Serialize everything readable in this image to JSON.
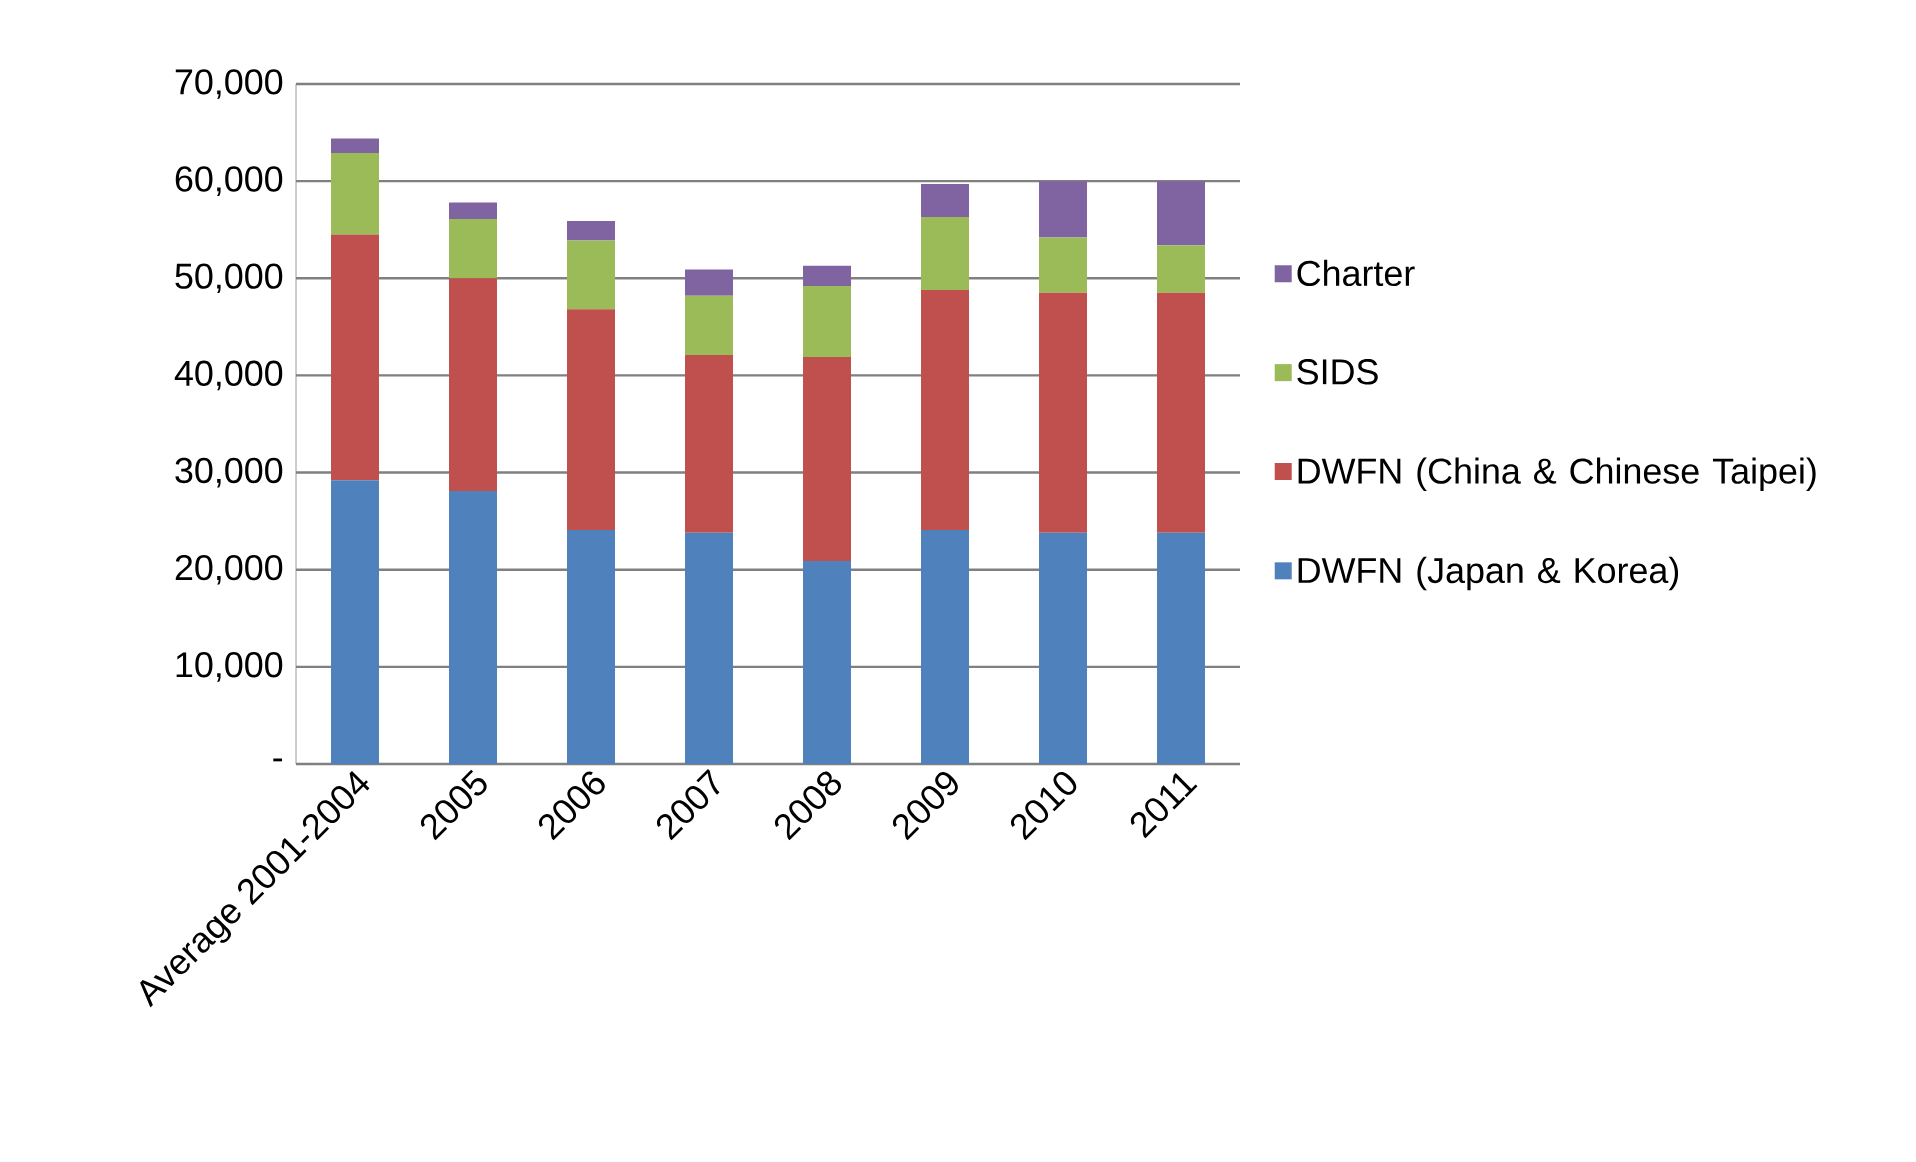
{
  "chart_data": {
    "type": "bar",
    "stacked": true,
    "categories": [
      "Average 2001-2004",
      "2005",
      "2006",
      "2007",
      "2008",
      "2009",
      "2010",
      "2011"
    ],
    "series": [
      {
        "name": "DWFN (Japan & Korea)",
        "color": "#4f81bd",
        "values": [
          29200,
          28100,
          24100,
          23800,
          20900,
          24100,
          23800,
          23800
        ]
      },
      {
        "name": "DWFN (China & Chinese Taipei)",
        "color": "#c0504d",
        "values": [
          25300,
          21900,
          22700,
          18300,
          21000,
          24700,
          24700,
          24700
        ]
      },
      {
        "name": "SIDS",
        "color": "#9bbb59",
        "values": [
          8400,
          6100,
          7100,
          6100,
          7300,
          7500,
          5700,
          4900
        ]
      },
      {
        "name": "Charter",
        "color": "#8064a2",
        "values": [
          1500,
          1700,
          2000,
          2700,
          2100,
          3400,
          5800,
          6600
        ]
      }
    ],
    "ylim": [
      0,
      70000
    ],
    "yticks": [
      {
        "value": 0,
        "label": "-"
      },
      {
        "value": 10000,
        "label": "10,000"
      },
      {
        "value": 20000,
        "label": "20,000"
      },
      {
        "value": 30000,
        "label": "30,000"
      },
      {
        "value": 40000,
        "label": "40,000"
      },
      {
        "value": 50000,
        "label": "50,000"
      },
      {
        "value": 60000,
        "label": "60,000"
      },
      {
        "value": 70000,
        "label": "70,000"
      }
    ],
    "grid": "y",
    "legend": "right"
  }
}
